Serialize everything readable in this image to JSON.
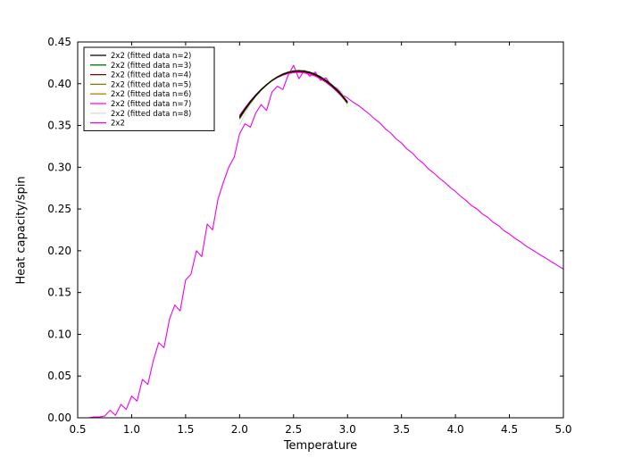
{
  "figure": {
    "background": "#ffffff",
    "frame_color": "#000000",
    "tick_color": "#000000"
  },
  "chart_data": {
    "type": "line",
    "title": "",
    "xlabel": "Temperature",
    "ylabel": "Heat capacity/spin",
    "xlim": [
      0.5,
      5.0
    ],
    "ylim": [
      0.0,
      0.45
    ],
    "grid": false,
    "legend_position": "upper left",
    "x_ticks": [
      0.5,
      1.0,
      1.5,
      2.0,
      2.5,
      3.0,
      3.5,
      4.0,
      4.5,
      5.0
    ],
    "x_tick_labels": [
      "0.5",
      "1.0",
      "1.5",
      "2.0",
      "2.5",
      "3.0",
      "3.5",
      "4.0",
      "4.5",
      "5.0"
    ],
    "y_ticks": [
      0.0,
      0.05,
      0.1,
      0.15,
      0.2,
      0.25,
      0.3,
      0.35,
      0.4,
      0.45
    ],
    "y_tick_labels": [
      "0.00",
      "0.05",
      "0.10",
      "0.15",
      "0.20",
      "0.25",
      "0.30",
      "0.35",
      "0.40",
      "0.45"
    ],
    "series": [
      {
        "name": "2x2 (fitted data n=2)",
        "color": "#000000",
        "x_start": 2.0,
        "x_step": 0.05,
        "y": [
          0.3595,
          0.3693,
          0.378,
          0.3859,
          0.3928,
          0.3989,
          0.4039,
          0.4081,
          0.4113,
          0.4137,
          0.415,
          0.4155,
          0.415,
          0.4137,
          0.4113,
          0.4081,
          0.4039,
          0.3989,
          0.3928,
          0.3859,
          0.378
        ]
      },
      {
        "name": "2x2 (fitted data n=3)",
        "color": "#008000",
        "x_start": 2.0,
        "x_step": 0.05,
        "y": [
          0.3585,
          0.3684,
          0.3772,
          0.3852,
          0.3922,
          0.3984,
          0.4035,
          0.4078,
          0.4111,
          0.4136,
          0.415,
          0.4156,
          0.4152,
          0.4139,
          0.4116,
          0.4084,
          0.4043,
          0.3993,
          0.3933,
          0.3864,
          0.3786
        ]
      },
      {
        "name": "2x2 (fitted data n=4)",
        "color": "#800000",
        "x_start": 2.0,
        "x_step": 0.05,
        "y": [
          0.361,
          0.3705,
          0.3789,
          0.3865,
          0.3932,
          0.399,
          0.4038,
          0.4078,
          0.4108,
          0.413,
          0.4142,
          0.4146,
          0.414,
          0.4126,
          0.4102,
          0.4069,
          0.4027,
          0.3976,
          0.3916,
          0.3847,
          0.3769
        ]
      },
      {
        "name": "2x2 (fitted data n=5)",
        "color": "#808000",
        "x_start": 2.0,
        "x_step": 0.05,
        "y": [
          0.3575,
          0.3678,
          0.377,
          0.3853,
          0.3925,
          0.3988,
          0.4041,
          0.4084,
          0.4118,
          0.4141,
          0.4155,
          0.416,
          0.4154,
          0.4139,
          0.4114,
          0.408,
          0.4035,
          0.3982,
          0.3918,
          0.3845,
          0.3762
        ]
      },
      {
        "name": "2x2 (fitted data n=6)",
        "color": "#b8860b",
        "x_start": 2.0,
        "x_step": 0.05,
        "y": [
          0.36,
          0.3697,
          0.3784,
          0.3862,
          0.393,
          0.399,
          0.404,
          0.4081,
          0.4112,
          0.4135,
          0.4148,
          0.4152,
          0.4147,
          0.4133,
          0.411,
          0.4077,
          0.4036,
          0.3985,
          0.3925,
          0.3856,
          0.3778
        ]
      },
      {
        "name": "2x2 (fitted data n=7)",
        "color": "#ff00ff",
        "x_start": 2.0,
        "x_step": 0.05,
        "y": [
          0.362,
          0.3712,
          0.3795,
          0.3868,
          0.3933,
          0.3988,
          0.4035,
          0.4072,
          0.4101,
          0.4121,
          0.4132,
          0.4135,
          0.4129,
          0.4114,
          0.409,
          0.4058,
          0.4017,
          0.3967,
          0.3909,
          0.3842,
          0.3766
        ]
      },
      {
        "name": "2x2 (fitted data n=8)",
        "color": "#dddddd",
        "x_start": 2.0,
        "x_step": 0.05,
        "y": [
          0.35,
          0.364,
          0.3755,
          0.3848,
          0.3922,
          0.3985,
          0.4038,
          0.408,
          0.4112,
          0.4136,
          0.415,
          0.4154,
          0.4149,
          0.4136,
          0.4113,
          0.4082,
          0.4041,
          0.399,
          0.3958,
          0.39,
          0.372
        ]
      },
      {
        "name": "2x2",
        "color": "#ee00ee",
        "x_start": 0.5,
        "x_step": 0.05,
        "y": [
          0.0,
          0.0,
          0.0,
          0.001,
          0.001,
          0.002,
          0.009,
          0.003,
          0.016,
          0.01,
          0.026,
          0.02,
          0.046,
          0.04,
          0.068,
          0.09,
          0.084,
          0.118,
          0.135,
          0.128,
          0.165,
          0.172,
          0.2,
          0.193,
          0.232,
          0.225,
          0.262,
          0.282,
          0.3,
          0.312,
          0.34,
          0.352,
          0.348,
          0.365,
          0.375,
          0.368,
          0.39,
          0.397,
          0.393,
          0.41,
          0.422,
          0.406,
          0.416,
          0.409,
          0.414,
          0.404,
          0.407,
          0.398,
          0.395,
          0.387,
          0.383,
          0.378,
          0.374,
          0.369,
          0.364,
          0.358,
          0.353,
          0.346,
          0.341,
          0.334,
          0.329,
          0.322,
          0.317,
          0.31,
          0.305,
          0.298,
          0.293,
          0.287,
          0.282,
          0.276,
          0.271,
          0.265,
          0.26,
          0.254,
          0.25,
          0.244,
          0.24,
          0.234,
          0.23,
          0.224,
          0.22,
          0.215,
          0.211,
          0.206,
          0.202,
          0.198,
          0.194,
          0.19,
          0.186,
          0.182,
          0.178
        ]
      }
    ]
  }
}
